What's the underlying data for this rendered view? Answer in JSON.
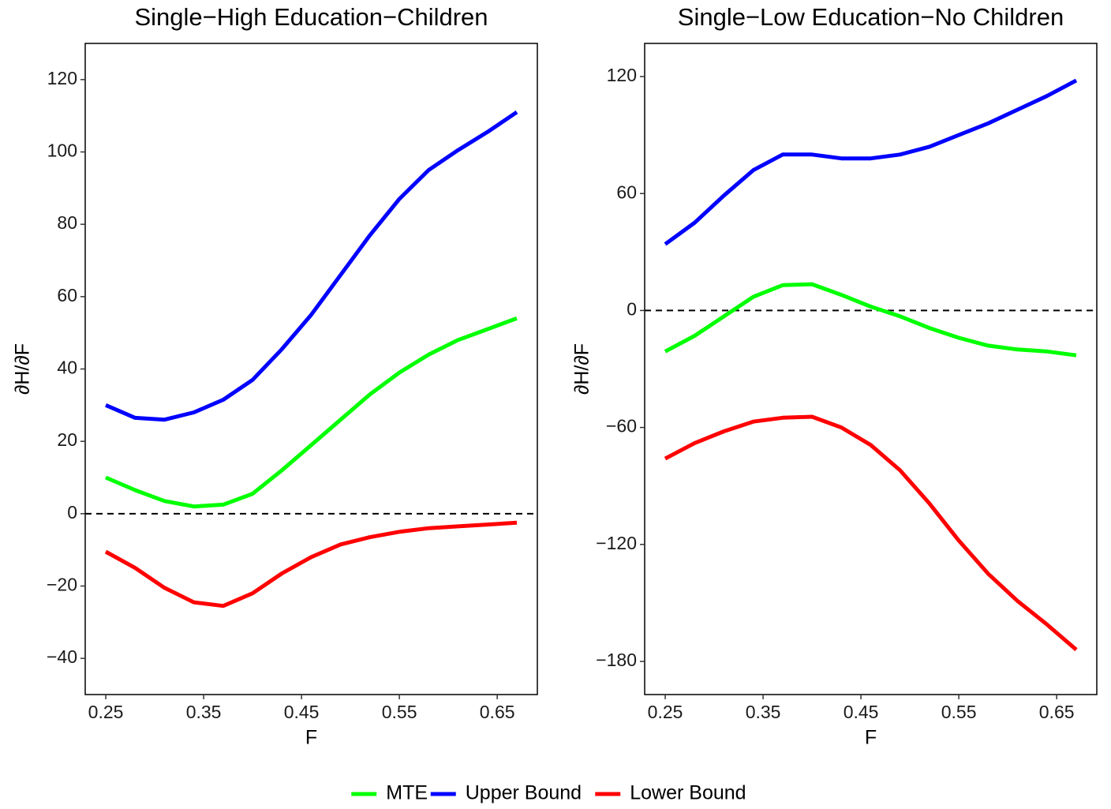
{
  "chart_data": [
    {
      "type": "line",
      "title": "Single−High Education−Children",
      "x_label": "F",
      "y_label": "∂H/∂F",
      "x": [
        0.25,
        0.28,
        0.31,
        0.34,
        0.37,
        0.4,
        0.43,
        0.46,
        0.49,
        0.52,
        0.55,
        0.58,
        0.61,
        0.64,
        0.67
      ],
      "series": [
        {
          "name": "MTE",
          "color": "#00ff00",
          "values": [
            10,
            6.5,
            3.5,
            2,
            2.5,
            5.5,
            12,
            19,
            26,
            33,
            39,
            44,
            48,
            51,
            54
          ]
        },
        {
          "name": "Upper Bound",
          "color": "#0000ff",
          "values": [
            30,
            26.5,
            26,
            28,
            31.5,
            37,
            45.5,
            55,
            66,
            77,
            87,
            95,
            100.5,
            105.5,
            111
          ]
        },
        {
          "name": "Lower Bound",
          "color": "#ff0000",
          "values": [
            -10.5,
            -15,
            -20.5,
            -24.5,
            -25.5,
            -22,
            -16.5,
            -12,
            -8.5,
            -6.5,
            -5,
            -4,
            -3.5,
            -3,
            -2.5
          ]
        }
      ],
      "xlim": [
        0.229,
        0.691
      ],
      "ylim": [
        -50,
        130
      ],
      "xticks": [
        0.25,
        0.35,
        0.45,
        0.55,
        0.65
      ],
      "yticks": [
        {
          "value": -40,
          "label": "−40"
        },
        {
          "value": -20,
          "label": "−20"
        },
        0,
        20,
        40,
        60,
        80,
        100,
        120
      ],
      "hline": 0
    },
    {
      "type": "line",
      "title": "Single−Low Education−No Children",
      "x_label": "F",
      "y_label": "∂H/∂F",
      "x": [
        0.25,
        0.28,
        0.31,
        0.34,
        0.37,
        0.4,
        0.43,
        0.46,
        0.49,
        0.52,
        0.55,
        0.58,
        0.61,
        0.64,
        0.67
      ],
      "series": [
        {
          "color": "#00ff00",
          "values": [
            -21,
            -13,
            -3,
            7,
            13,
            13.5,
            8,
            2,
            -3,
            -9,
            -14,
            -18,
            -20,
            -21,
            -23
          ]
        },
        {
          "color": "#0000ff",
          "values": [
            34,
            45,
            59,
            72,
            80,
            80,
            78,
            78,
            80,
            84,
            90,
            96,
            103,
            110,
            118
          ]
        },
        {
          "color": "#ff0000",
          "values": [
            -76,
            -68,
            -62,
            -57,
            -55,
            -54.5,
            -60,
            -69,
            -82,
            -99,
            -118,
            -135,
            -149,
            -161,
            -174
          ]
        }
      ],
      "xlim": [
        0.229,
        0.691
      ],
      "ylim": [
        -197,
        137
      ],
      "xticks": [
        0.25,
        0.35,
        0.45,
        0.55,
        0.65
      ],
      "yticks": [
        {
          "value": -180,
          "label": "−180"
        },
        {
          "value": -120,
          "label": "−120"
        },
        {
          "value": -60,
          "label": "−60"
        },
        0,
        60,
        120
      ],
      "hline": 0
    }
  ]
}
